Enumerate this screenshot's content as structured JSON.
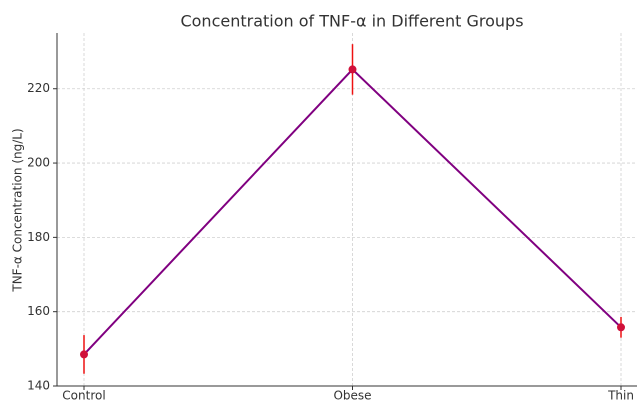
{
  "chart_data": {
    "type": "line",
    "title": "Concentration of TNF-α in Different Groups",
    "y_label": "TNF-α Concentration (ng/L)",
    "categories": [
      "Control",
      "Obese",
      "Thin"
    ],
    "series": [
      {
        "values": [
          148.5,
          225.2,
          155.8
        ],
        "errors": [
          5.2,
          6.8,
          2.8
        ],
        "color": "#800080",
        "marker_color": "#d0103a",
        "error_color": "#ee1111"
      }
    ],
    "ylim": [
      140,
      235
    ],
    "yticks": [
      140,
      160,
      180,
      200,
      220
    ],
    "grid": true
  }
}
